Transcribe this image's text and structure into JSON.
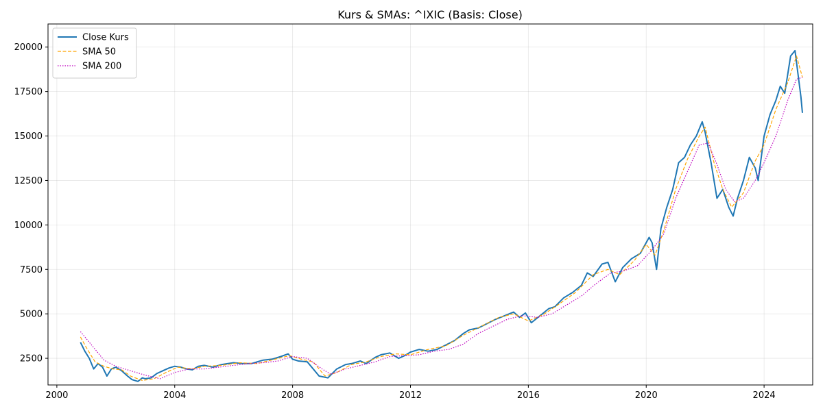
{
  "chart_data": {
    "type": "line",
    "title": "Kurs & SMAs: ^IXIC (Basis: Close)",
    "xlabel": "",
    "ylabel": "",
    "xlim": [
      1999.7,
      2025.65
    ],
    "ylim": [
      1000,
      21300
    ],
    "x_ticks": [
      2000,
      2004,
      2008,
      2012,
      2016,
      2020,
      2024
    ],
    "x_tick_labels": [
      "2000",
      "2004",
      "2008",
      "2012",
      "2016",
      "2020",
      "2024"
    ],
    "y_ticks": [
      2500,
      5000,
      7500,
      10000,
      12500,
      15000,
      17500,
      20000
    ],
    "y_tick_labels": [
      "2500",
      "5000",
      "7500",
      "10000",
      "12500",
      "15000",
      "17500",
      "20000"
    ],
    "grid": true,
    "legend_position": "top-left",
    "series": [
      {
        "name": "Close Kurs",
        "color": "#1f77b4",
        "style": "solid",
        "x": [
          2000.8,
          2000.95,
          2001.1,
          2001.25,
          2001.4,
          2001.55,
          2001.7,
          2001.85,
          2002.0,
          2002.2,
          2002.4,
          2002.55,
          2002.75,
          2002.9,
          2003.0,
          2003.2,
          2003.4,
          2003.6,
          2003.8,
          2004.0,
          2004.2,
          2004.4,
          2004.6,
          2004.8,
          2005.0,
          2005.3,
          2005.6,
          2006.0,
          2006.3,
          2006.6,
          2007.0,
          2007.3,
          2007.6,
          2007.85,
          2008.0,
          2008.2,
          2008.5,
          2008.7,
          2008.9,
          2009.2,
          2009.5,
          2009.8,
          2010.0,
          2010.3,
          2010.5,
          2010.8,
          2011.0,
          2011.3,
          2011.6,
          2011.8,
          2012.0,
          2012.3,
          2012.6,
          2012.9,
          2013.2,
          2013.5,
          2013.8,
          2014.0,
          2014.3,
          2014.6,
          2014.9,
          2015.2,
          2015.5,
          2015.7,
          2015.9,
          2016.1,
          2016.4,
          2016.7,
          2016.9,
          2017.2,
          2017.5,
          2017.8,
          2018.0,
          2018.2,
          2018.5,
          2018.7,
          2018.95,
          2019.2,
          2019.5,
          2019.8,
          2020.1,
          2020.2,
          2020.35,
          2020.5,
          2020.7,
          2020.9,
          2021.1,
          2021.3,
          2021.5,
          2021.7,
          2021.9,
          2022.0,
          2022.2,
          2022.4,
          2022.6,
          2022.8,
          2022.95,
          2023.1,
          2023.3,
          2023.5,
          2023.7,
          2023.8,
          2024.0,
          2024.2,
          2024.4,
          2024.55,
          2024.7,
          2024.9,
          2025.05,
          2025.15,
          2025.25,
          2025.3
        ],
        "y": [
          3400,
          2900,
          2500,
          1900,
          2200,
          2000,
          1500,
          1900,
          2000,
          1800,
          1500,
          1300,
          1200,
          1400,
          1350,
          1400,
          1650,
          1800,
          1950,
          2050,
          2000,
          1900,
          1850,
          2050,
          2100,
          2000,
          2150,
          2250,
          2200,
          2200,
          2400,
          2450,
          2600,
          2750,
          2450,
          2350,
          2300,
          1900,
          1500,
          1400,
          1900,
          2150,
          2200,
          2350,
          2200,
          2550,
          2700,
          2800,
          2500,
          2650,
          2850,
          3000,
          2900,
          3000,
          3250,
          3500,
          3900,
          4100,
          4200,
          4450,
          4700,
          4900,
          5100,
          4800,
          5050,
          4500,
          4900,
          5300,
          5400,
          5900,
          6200,
          6600,
          7300,
          7100,
          7800,
          7900,
          6800,
          7600,
          8100,
          8400,
          9300,
          9000,
          7500,
          9800,
          11000,
          12000,
          13500,
          13800,
          14500,
          15000,
          15800,
          15200,
          13500,
          11500,
          12000,
          11000,
          10500,
          11500,
          12500,
          13800,
          13200,
          12500,
          15000,
          16200,
          17000,
          17800,
          17400,
          19500,
          19800,
          18500,
          17200,
          16300
        ]
      },
      {
        "name": "SMA 50",
        "color": "#ffa500",
        "style": "dashed",
        "x": [
          2000.8,
          2001.0,
          2001.3,
          2001.6,
          2001.9,
          2002.2,
          2002.5,
          2002.9,
          2003.3,
          2003.7,
          2004.1,
          2004.6,
          2005.0,
          2005.6,
          2006.2,
          2006.8,
          2007.4,
          2007.9,
          2008.3,
          2008.7,
          2009.1,
          2009.5,
          2010.0,
          2010.5,
          2011.0,
          2011.5,
          2012.0,
          2012.6,
          2013.2,
          2013.8,
          2014.4,
          2015.0,
          2015.5,
          2016.0,
          2016.5,
          2017.0,
          2017.6,
          2018.2,
          2018.7,
          2019.1,
          2019.6,
          2020.0,
          2020.3,
          2020.6,
          2021.0,
          2021.4,
          2021.8,
          2022.0,
          2022.3,
          2022.6,
          2022.9,
          2023.3,
          2023.7,
          2024.0,
          2024.4,
          2024.8,
          2025.1,
          2025.3
        ],
        "y": [
          3700,
          3100,
          2300,
          2050,
          1900,
          1850,
          1500,
          1250,
          1350,
          1700,
          2000,
          1900,
          2050,
          2100,
          2250,
          2200,
          2450,
          2650,
          2450,
          2300,
          1500,
          1700,
          2150,
          2300,
          2600,
          2750,
          2700,
          3000,
          3200,
          3800,
          4300,
          4800,
          5000,
          4600,
          4950,
          5500,
          6200,
          7200,
          7500,
          7200,
          8000,
          8900,
          8300,
          9700,
          12000,
          13700,
          15000,
          15500,
          13500,
          12000,
          11000,
          11800,
          13600,
          14500,
          16500,
          18000,
          19500,
          18300
        ]
      },
      {
        "name": "SMA 200",
        "color": "#bf00bf",
        "style": "dotted",
        "x": [
          2000.8,
          2001.2,
          2001.6,
          2002.0,
          2002.5,
          2003.0,
          2003.5,
          2004.0,
          2004.5,
          2005.0,
          2005.5,
          2006.0,
          2006.5,
          2007.0,
          2007.5,
          2008.0,
          2008.5,
          2009.0,
          2009.3,
          2009.8,
          2010.3,
          2010.8,
          2011.3,
          2011.8,
          2012.3,
          2012.8,
          2013.3,
          2013.8,
          2014.3,
          2014.8,
          2015.3,
          2015.8,
          2016.3,
          2016.8,
          2017.3,
          2017.8,
          2018.3,
          2018.8,
          2019.2,
          2019.7,
          2020.2,
          2020.6,
          2021.0,
          2021.4,
          2021.8,
          2022.1,
          2022.4,
          2022.7,
          2023.0,
          2023.3,
          2023.7,
          2024.0,
          2024.4,
          2024.8,
          2025.1,
          2025.3
        ],
        "y": [
          4000,
          3200,
          2400,
          2050,
          1800,
          1550,
          1350,
          1700,
          1900,
          1900,
          2000,
          2100,
          2200,
          2250,
          2350,
          2600,
          2500,
          1900,
          1600,
          1900,
          2100,
          2300,
          2600,
          2650,
          2700,
          2900,
          3000,
          3300,
          3900,
          4300,
          4700,
          4900,
          4800,
          5000,
          5500,
          6000,
          6700,
          7300,
          7400,
          7700,
          8600,
          9500,
          11500,
          13000,
          14500,
          14600,
          13400,
          12000,
          11300,
          11500,
          12500,
          13500,
          15000,
          17000,
          18200,
          18300
        ]
      }
    ]
  }
}
